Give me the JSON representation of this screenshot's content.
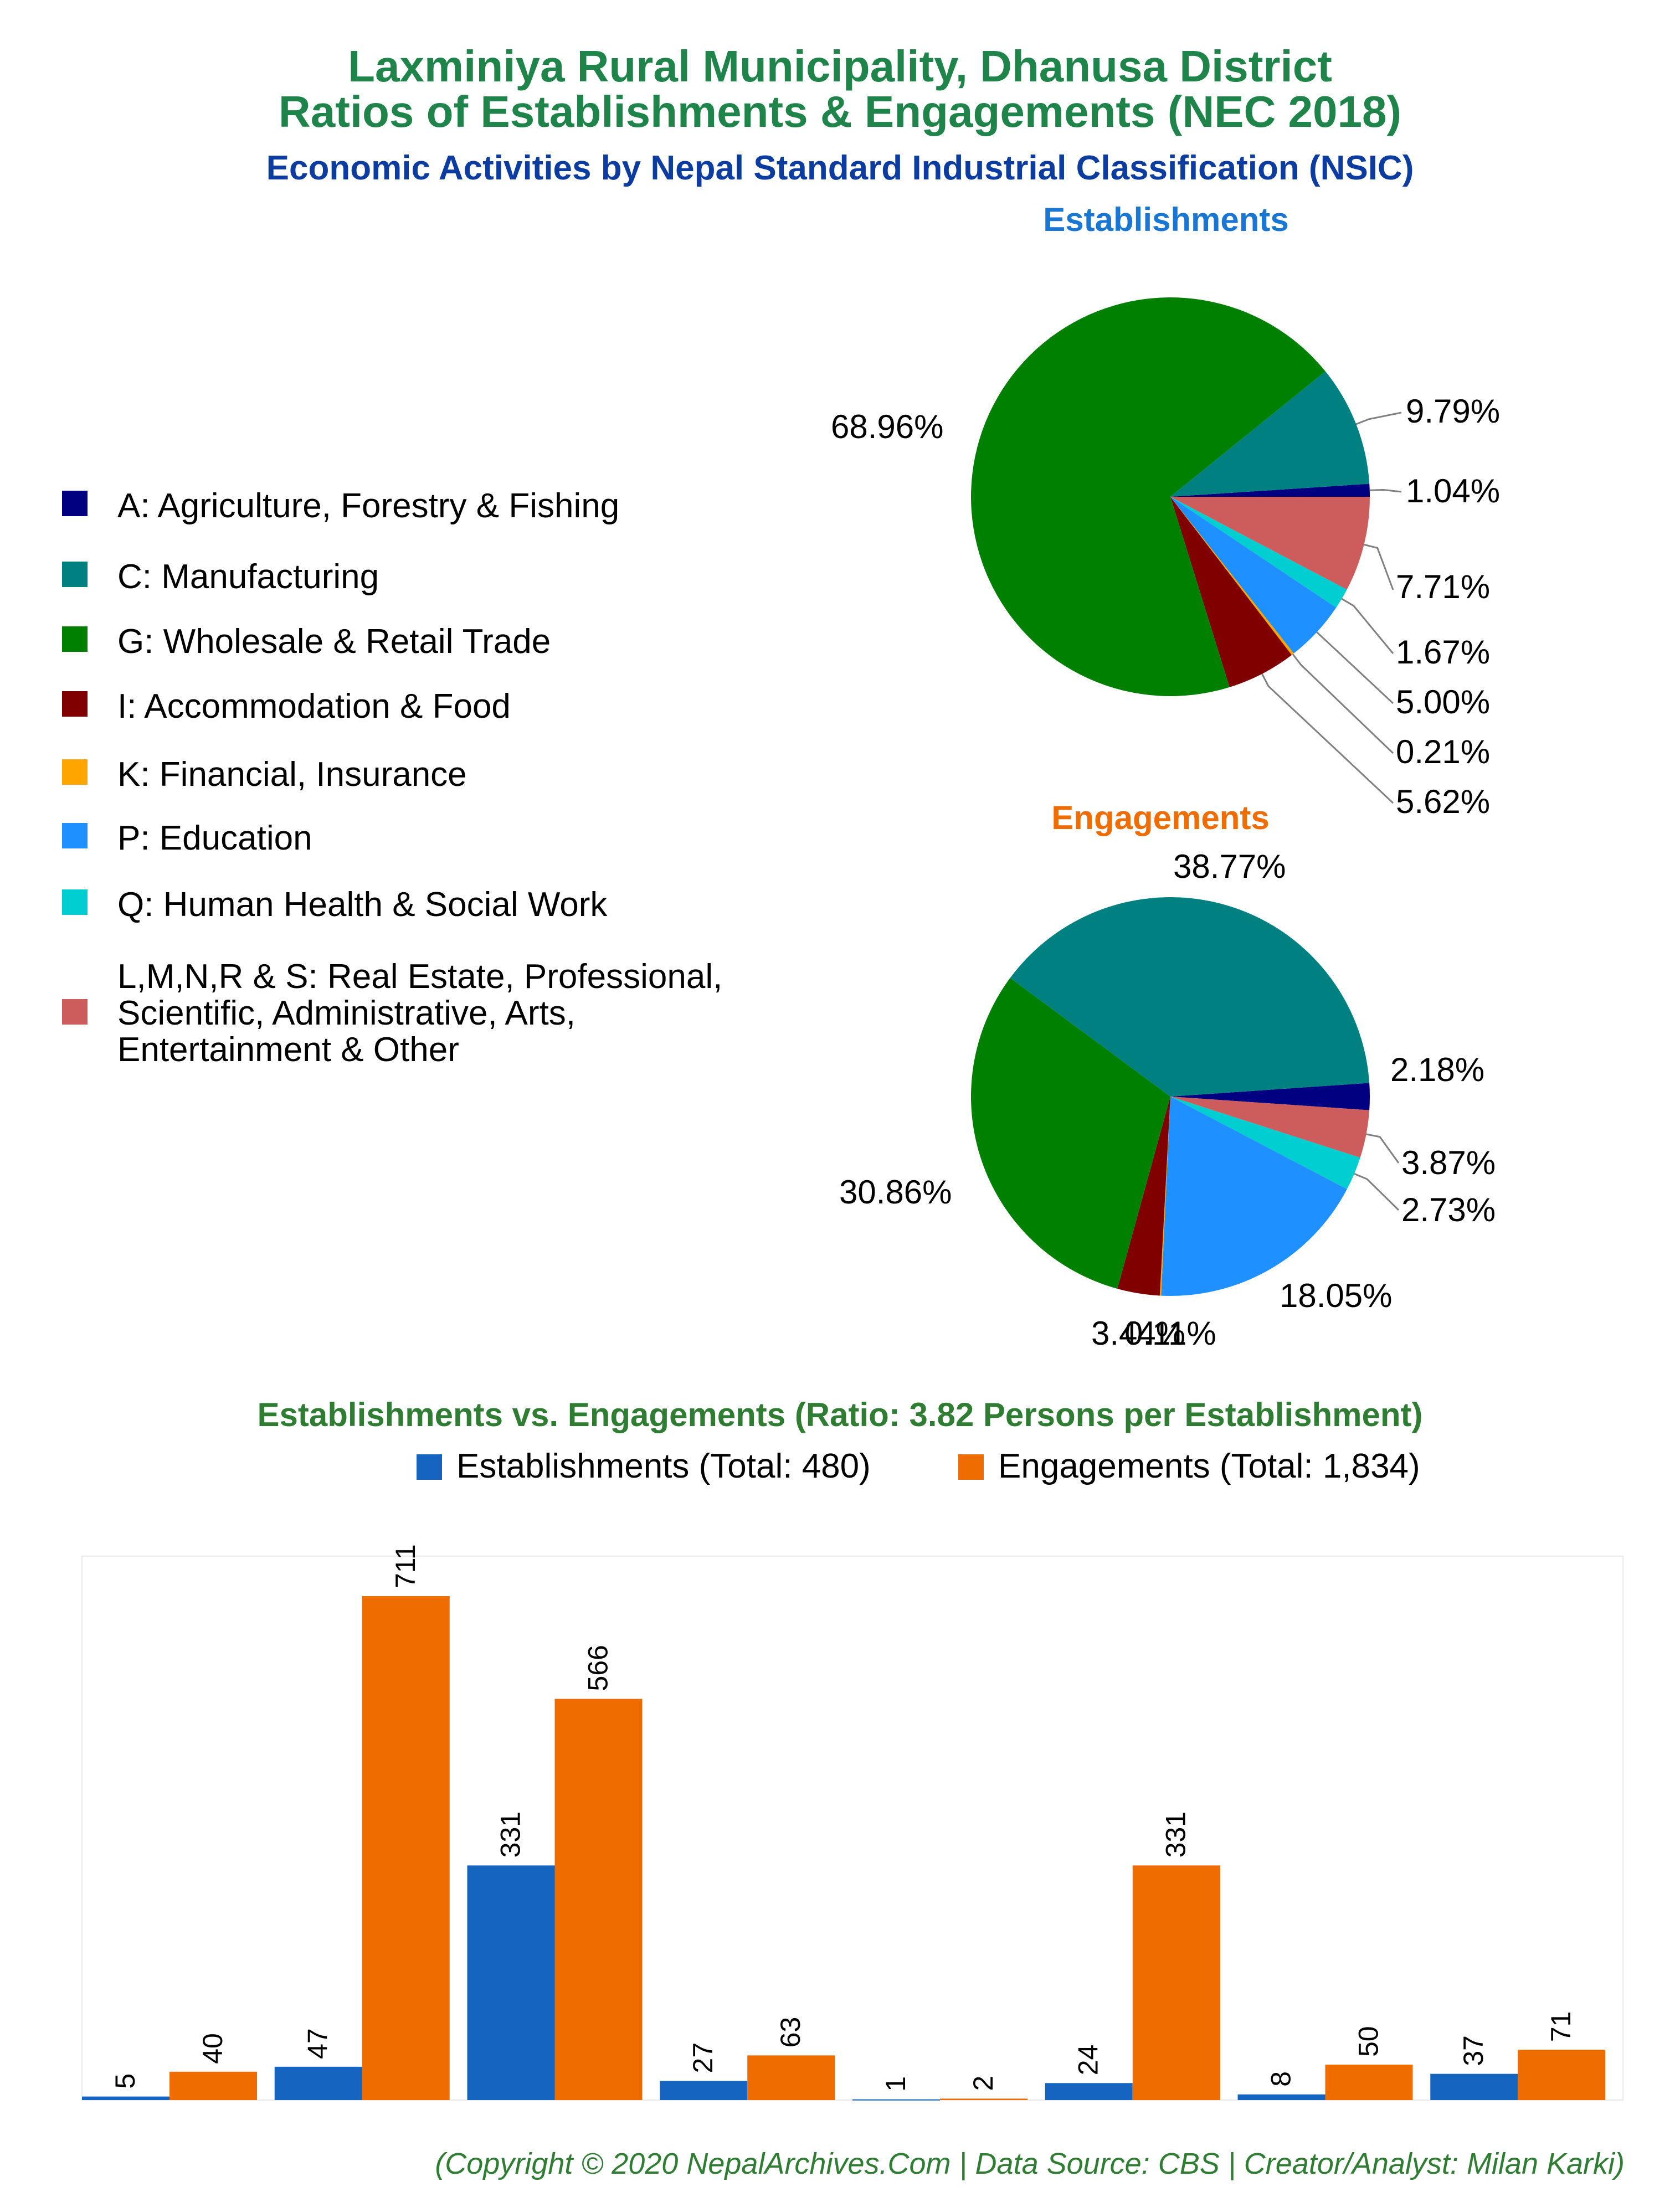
{
  "header": {
    "title_line1": "Laxminiya Rural Municipality, Dhanusa District",
    "title_line2": "Ratios of Establishments & Engagements (NEC 2018)",
    "subtitle": "Economic Activities by Nepal Standard Industrial Classification (NSIC)"
  },
  "legend": {
    "items": [
      {
        "label": "A: Agriculture, Forestry & Fishing",
        "color": "#000080"
      },
      {
        "label": "C: Manufacturing",
        "color": "#008080"
      },
      {
        "label": "G: Wholesale & Retail Trade",
        "color": "#008000"
      },
      {
        "label": "I: Accommodation & Food",
        "color": "#800000"
      },
      {
        "label": "K: Financial, Insurance",
        "color": "#FFA500"
      },
      {
        "label": "P: Education",
        "color": "#1E90FF"
      },
      {
        "label": "Q: Human Health & Social Work",
        "color": "#00CED1"
      },
      {
        "label": "L,M,N,R & S: Real Estate, Professional,",
        "label2": "Scientific, Administrative, Arts,",
        "label3": "Entertainment & Other",
        "color": "#CD5C5C"
      }
    ]
  },
  "chart_data": [
    {
      "type": "pie",
      "title": "Establishments",
      "title_color": "#1976d2",
      "categories": [
        "A",
        "C",
        "G",
        "I",
        "K",
        "P",
        "Q",
        "L,M,N,R & S"
      ],
      "values": [
        1.04,
        9.79,
        68.96,
        5.62,
        0.21,
        5.0,
        1.67,
        7.71
      ],
      "labels": [
        "1.04%",
        "9.79%",
        "68.96%",
        "5.62%",
        "0.21%",
        "5.00%",
        "1.67%",
        "7.71%"
      ]
    },
    {
      "type": "pie",
      "title": "Engagements",
      "title_color": "#ef6c00",
      "categories": [
        "A",
        "C",
        "G",
        "I",
        "K",
        "P",
        "Q",
        "L,M,N,R & S"
      ],
      "values": [
        2.18,
        38.77,
        30.86,
        3.44,
        0.11,
        18.05,
        2.73,
        3.87
      ],
      "labels": [
        "2.18%",
        "38.77%",
        "30.86%",
        "3.44%",
        "0.11%",
        "18.05%",
        "2.73%",
        "3.87%"
      ]
    },
    {
      "type": "bar",
      "title": "Establishments vs. Engagements (Ratio: 3.82 Persons per Establishment)",
      "categories": [
        "A",
        "C",
        "G",
        "I",
        "K",
        "P",
        "Q",
        "L,M,N,R & S"
      ],
      "series": [
        {
          "name": "Establishments (Total: 480)",
          "color": "#1565c0",
          "values": [
            5,
            47,
            331,
            27,
            1,
            24,
            8,
            37
          ]
        },
        {
          "name": "Engagements (Total: 1,834)",
          "color": "#ef6c00",
          "values": [
            40,
            711,
            566,
            63,
            2,
            331,
            50,
            71
          ]
        }
      ],
      "ylim": [
        0,
        711
      ]
    }
  ],
  "footer": {
    "credit": "(Copyright © 2020 NepalArchives.Com | Data Source: CBS | Creator/Analyst: Milan Karki)"
  }
}
